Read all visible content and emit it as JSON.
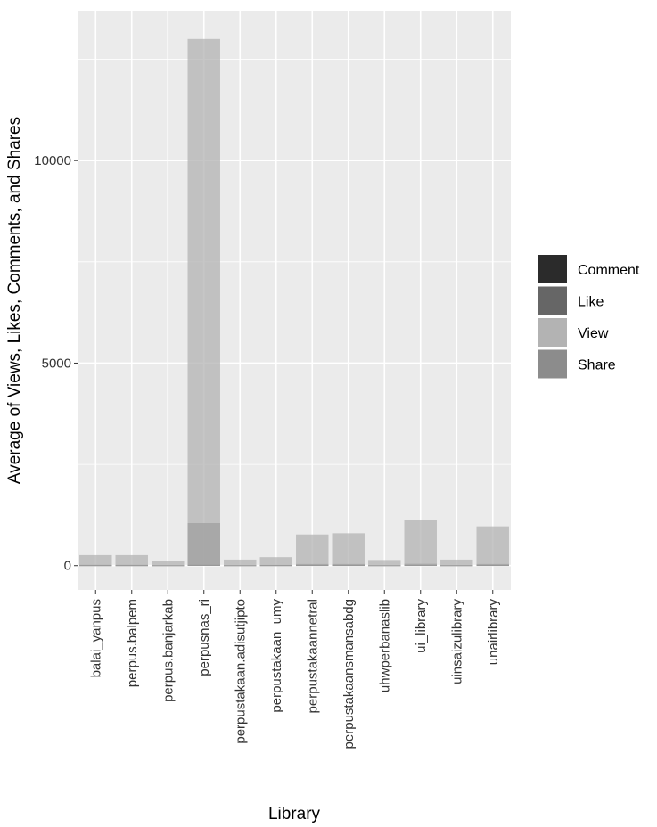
{
  "chart_data": {
    "type": "bar",
    "stacked": false,
    "xlabel": "Library",
    "ylabel": "Average of Views, Likes, Comments, and Shares",
    "categories": [
      "balai_yanpus",
      "perpus.balpem",
      "perpus.banjarkab",
      "perpusnas_ri",
      "perpustakaan.adisutjipto",
      "perpustakaan_umy",
      "perpustakaannetral",
      "perpustakaansmansabdg",
      "uhwperbanaslib",
      "ui_library",
      "uinsaizulibrary",
      "unairlibrary"
    ],
    "series": [
      {
        "name": "Comment",
        "color": "#2b2b2b",
        "values": [
          2,
          2,
          1,
          25,
          1,
          2,
          5,
          5,
          1,
          8,
          1,
          6
        ]
      },
      {
        "name": "Like",
        "color": "#666666",
        "values": [
          20,
          20,
          10,
          1050,
          12,
          18,
          40,
          40,
          10,
          45,
          12,
          40
        ]
      },
      {
        "name": "View",
        "color": "#b3b3b3",
        "values": [
          260,
          260,
          110,
          13000,
          150,
          210,
          770,
          800,
          140,
          1120,
          150,
          970
        ]
      },
      {
        "name": "Share",
        "color": "#8c8c8c",
        "values": [
          1,
          1,
          1,
          10,
          1,
          1,
          3,
          3,
          1,
          4,
          1,
          3
        ]
      }
    ],
    "yticks": [
      0,
      5000,
      10000
    ],
    "ylim": [
      -600,
      13700
    ],
    "grid": true,
    "legend_position": "right"
  }
}
